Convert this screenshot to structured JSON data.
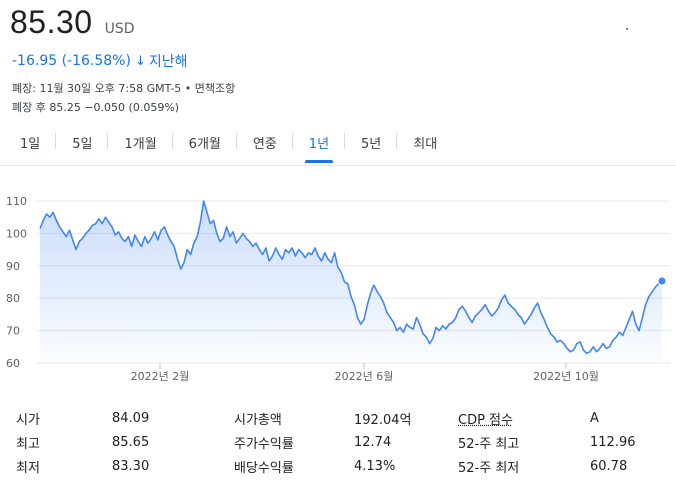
{
  "quote": {
    "price": "85.30",
    "currency": "USD",
    "change": "-16.95 (-16.58%)",
    "change_arrow": "↓",
    "period": "지난해",
    "close_info": "폐장: 11월 30일 오후 7:58 GMT-5 • 면책조항",
    "after_hours": "폐장 후 85.25 −0.050 (0.059%)"
  },
  "tabs": [
    {
      "label": "1일"
    },
    {
      "label": "5일"
    },
    {
      "label": "1개월"
    },
    {
      "label": "6개월"
    },
    {
      "label": "연중"
    },
    {
      "label": "1년",
      "active": true
    },
    {
      "label": "5년"
    },
    {
      "label": "최대"
    }
  ],
  "colors": {
    "accent": "#1a73e8",
    "line": "#4285f4",
    "negative": "#1a73e8"
  },
  "chart_data": {
    "type": "area",
    "ylim": [
      60,
      110
    ],
    "y_ticks": [
      "110",
      "100",
      "90",
      "80",
      "70",
      "60"
    ],
    "x_ticks": [
      {
        "label": "2022년 2월",
        "x": 38
      },
      {
        "label": "2022년 6월",
        "x": 142
      },
      {
        "label": "2022년 10월",
        "x": 246
      }
    ],
    "grid": true,
    "last_value": 85.3,
    "values": [
      101.5,
      104.0,
      106.0,
      105.0,
      106.5,
      104.0,
      102.0,
      100.5,
      99.0,
      101.0,
      98.0,
      95.0,
      97.5,
      98.5,
      100.0,
      101.0,
      102.5,
      103.0,
      104.5,
      103.0,
      105.0,
      103.5,
      102.0,
      99.5,
      100.5,
      98.5,
      97.5,
      99.0,
      96.0,
      99.5,
      97.5,
      96.0,
      99.0,
      97.0,
      98.5,
      100.5,
      98.0,
      101.0,
      102.0,
      99.5,
      97.5,
      96.0,
      92.0,
      89.0,
      91.0,
      95.0,
      93.5,
      97.0,
      99.0,
      103.5,
      110.0,
      106.5,
      103.0,
      104.0,
      100.0,
      97.5,
      98.5,
      102.0,
      99.0,
      100.5,
      97.0,
      98.5,
      100.0,
      98.5,
      97.5,
      96.0,
      97.0,
      95.0,
      93.5,
      95.5,
      91.5,
      93.0,
      95.5,
      93.5,
      92.0,
      95.0,
      94.0,
      95.5,
      93.0,
      95.0,
      94.0,
      92.5,
      94.0,
      93.5,
      95.5,
      93.0,
      91.5,
      94.0,
      92.0,
      91.0,
      94.0,
      89.5,
      88.0,
      85.0,
      84.5,
      80.5,
      78.0,
      74.0,
      72.0,
      73.5,
      78.0,
      81.5,
      84.0,
      82.0,
      80.5,
      78.5,
      75.5,
      74.0,
      72.5,
      70.0,
      71.0,
      69.5,
      72.0,
      71.0,
      70.5,
      74.0,
      72.0,
      69.0,
      68.0,
      66.0,
      67.5,
      71.0,
      70.0,
      71.5,
      70.5,
      72.0,
      72.5,
      74.0,
      76.5,
      77.5,
      76.0,
      74.0,
      72.5,
      74.5,
      75.5,
      76.5,
      78.0,
      76.0,
      74.5,
      75.5,
      77.0,
      79.5,
      81.0,
      78.5,
      77.5,
      76.5,
      75.0,
      74.0,
      72.0,
      73.5,
      75.0,
      77.0,
      78.5,
      75.5,
      73.5,
      71.0,
      69.0,
      68.0,
      66.5,
      67.0,
      66.0,
      64.5,
      63.5,
      64.0,
      66.0,
      66.5,
      64.0,
      63.0,
      63.5,
      65.0,
      63.5,
      64.5,
      66.0,
      64.5,
      65.0,
      67.0,
      68.0,
      69.5,
      68.5,
      71.0,
      73.5,
      76.0,
      72.0,
      70.0,
      74.0,
      78.0,
      80.5,
      82.0,
      83.5,
      84.5,
      85.3
    ]
  },
  "stats": [
    {
      "l1": "시가",
      "v1": "84.09",
      "l2": "시가총액",
      "v2": "192.04억",
      "l3": "CDP 점수",
      "v3": "A"
    },
    {
      "l1": "최고",
      "v1": "85.65",
      "l2": "주가수익률",
      "v2": "12.74",
      "l3": "52-주 최고",
      "v3": "112.96"
    },
    {
      "l1": "최저",
      "v1": "83.30",
      "l2": "배당수익률",
      "v2": "4.13%",
      "l3": "52-주 최저",
      "v3": "60.78"
    }
  ]
}
